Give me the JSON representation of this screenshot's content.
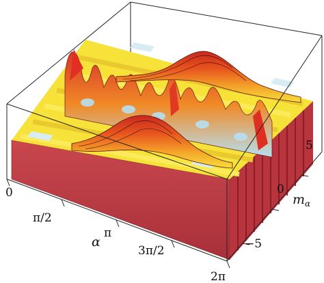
{
  "chart_data": {
    "type": "surface3d",
    "title": "",
    "x_axis": {
      "variable": "α",
      "range": [
        0,
        6.2832
      ],
      "ticks": [
        {
          "value": 0,
          "label": "0"
        },
        {
          "value": 1.5708,
          "label": "π/2"
        },
        {
          "value": 3.1416,
          "label": "π"
        },
        {
          "value": 4.7124,
          "label": "3π/2"
        },
        {
          "value": 6.2832,
          "label": "2π"
        }
      ]
    },
    "y_axis": {
      "variable": "m",
      "subscript": "α",
      "range": [
        -7,
        7
      ],
      "ticks": [
        {
          "value": 5,
          "label": "5"
        },
        {
          "value": 0,
          "label": "0"
        },
        {
          "value": -5,
          "label": "−5"
        }
      ]
    },
    "z_axis": {
      "label": "",
      "ticks": []
    },
    "colormap": [
      "#f6e23a",
      "#fbe93d",
      "#f4a62a",
      "#e85a1f",
      "#c8281e",
      "#8b1a1a"
    ],
    "base_colors": {
      "floor": "#8f1f24",
      "side": "#c4444b",
      "stripe_light": "#d8ecf4"
    }
  }
}
